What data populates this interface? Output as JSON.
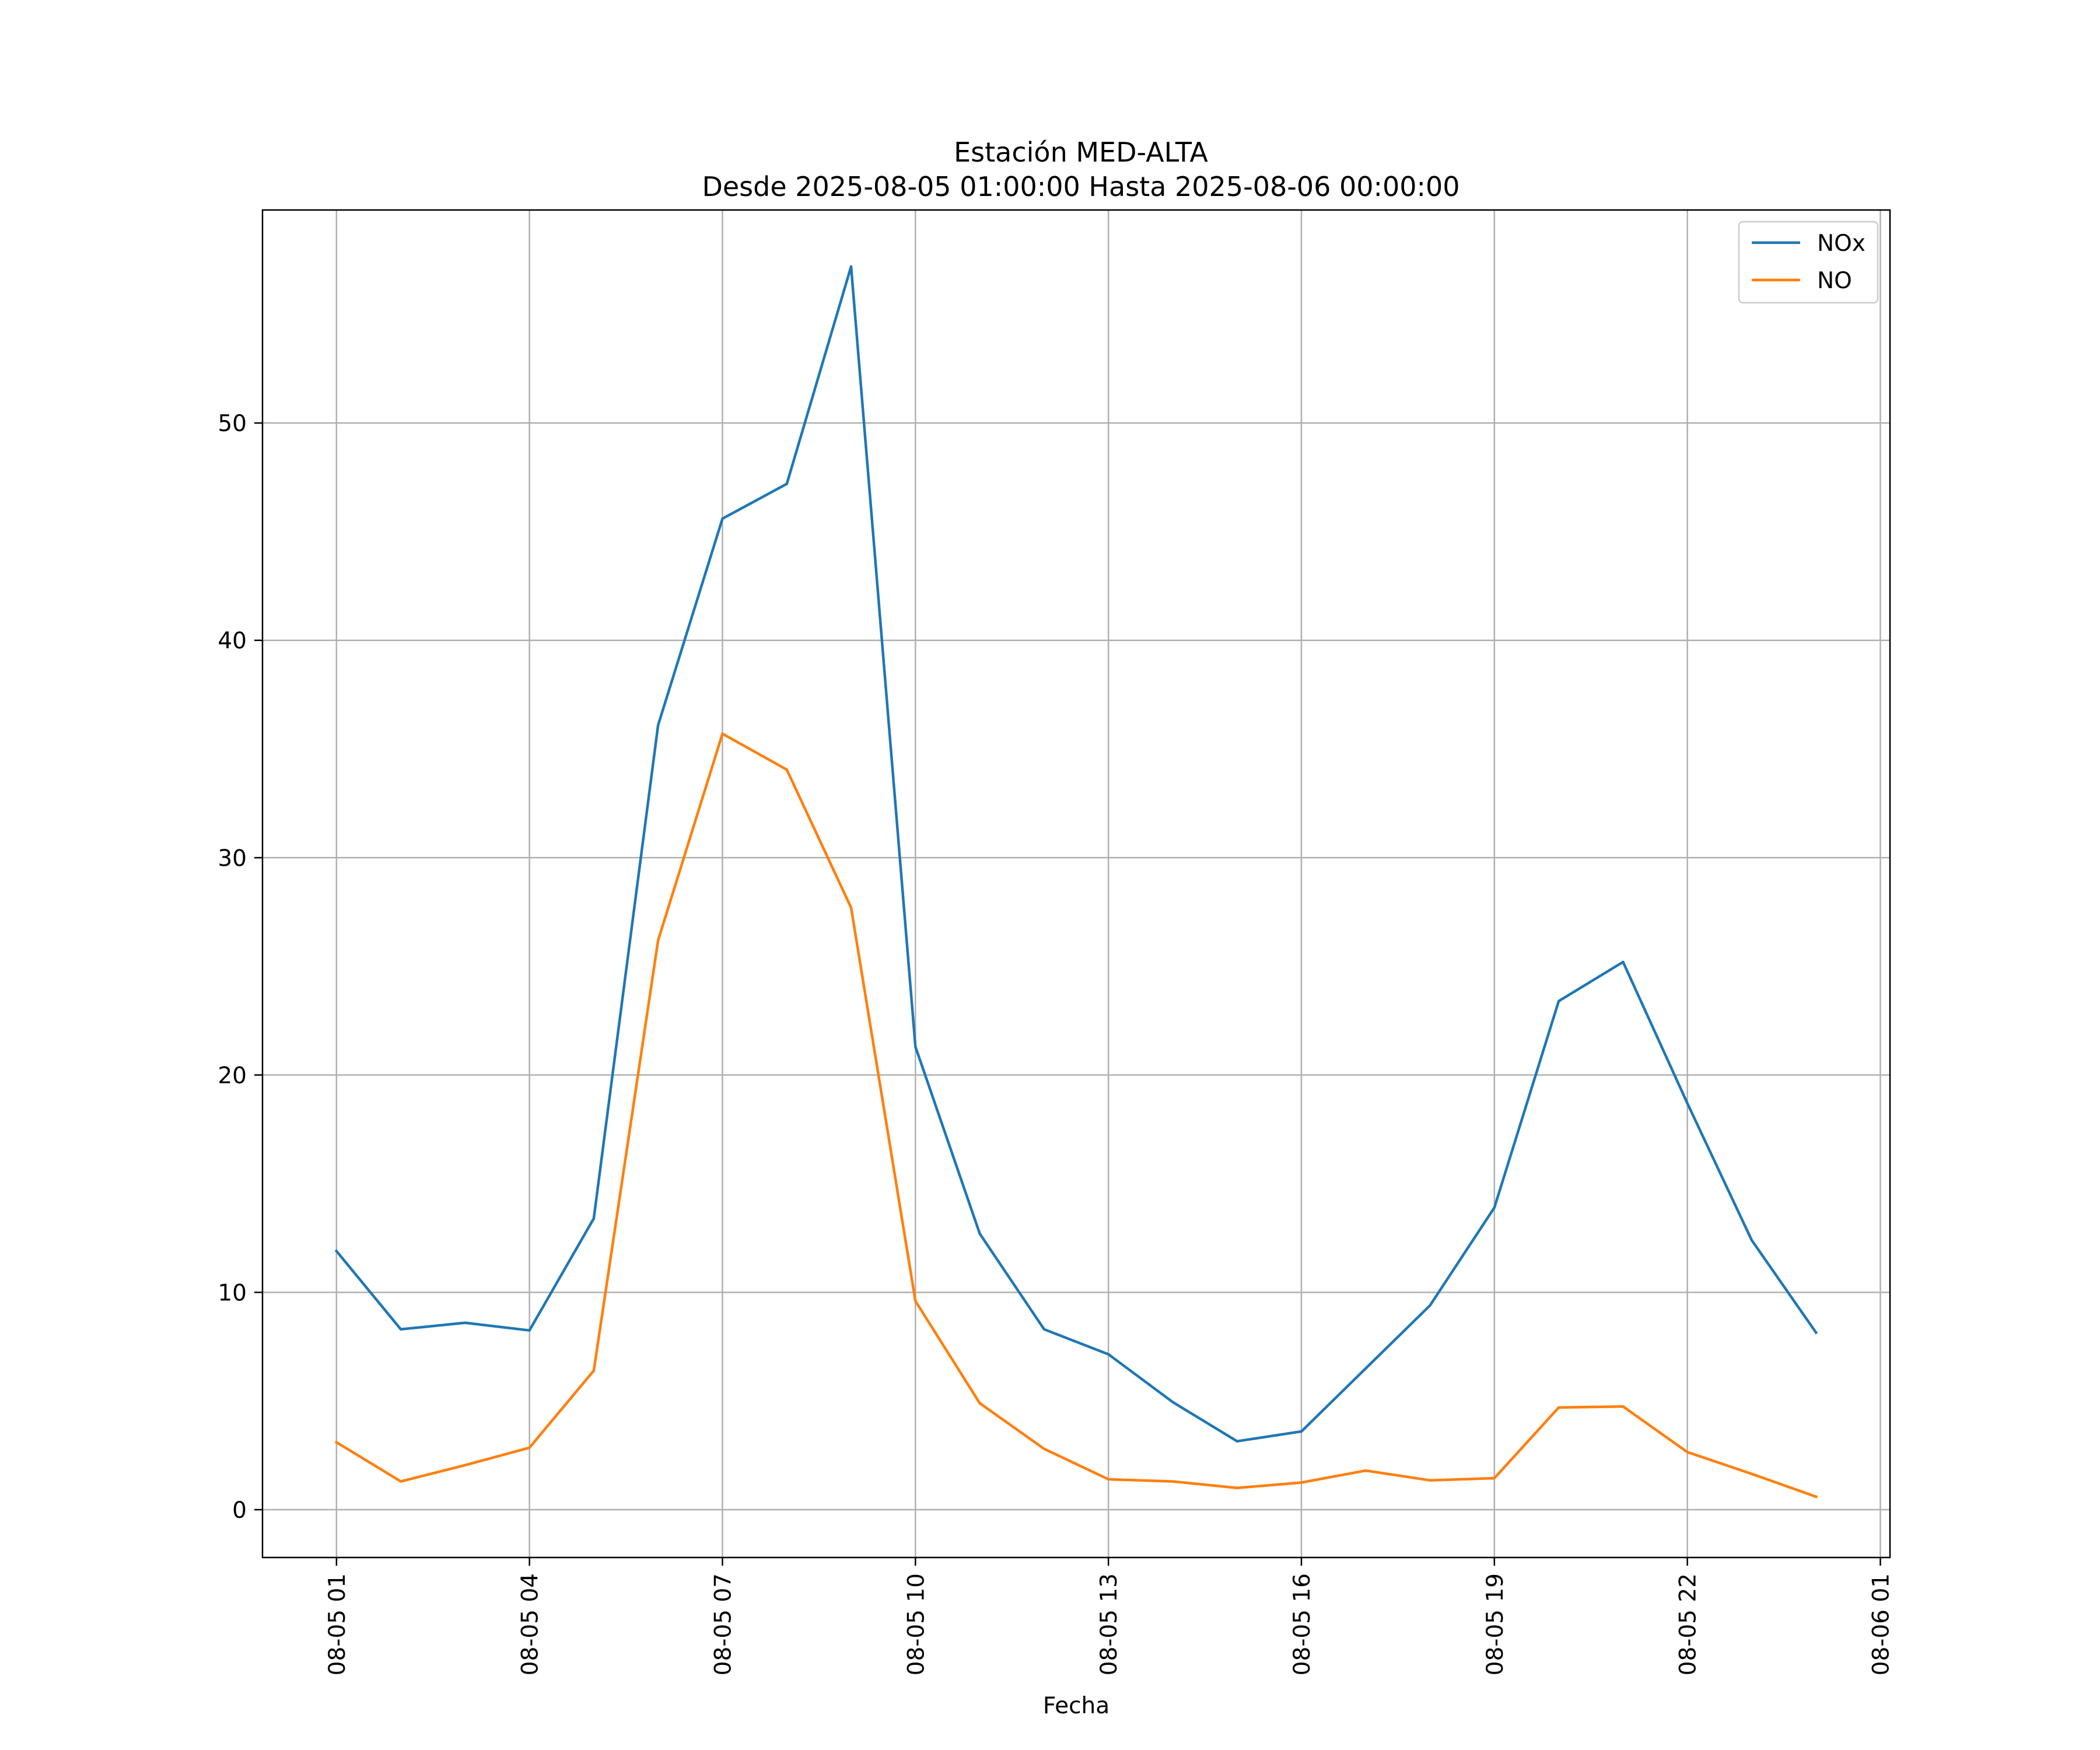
{
  "chart_data": {
    "type": "line",
    "title": "Estación MED-ALTA",
    "subtitle": "Desde 2025-08-05 01:00:00 Hasta 2025-08-06 00:00:00",
    "xlabel": "Fecha",
    "ylabel": "",
    "x": [
      "2025-08-05 01:00",
      "2025-08-05 02:00",
      "2025-08-05 03:00",
      "2025-08-05 04:00",
      "2025-08-05 05:00",
      "2025-08-05 06:00",
      "2025-08-05 07:00",
      "2025-08-05 08:00",
      "2025-08-05 09:00",
      "2025-08-05 10:00",
      "2025-08-05 11:00",
      "2025-08-05 12:00",
      "2025-08-05 13:00",
      "2025-08-05 14:00",
      "2025-08-05 15:00",
      "2025-08-05 16:00",
      "2025-08-05 17:00",
      "2025-08-05 18:00",
      "2025-08-05 19:00",
      "2025-08-05 20:00",
      "2025-08-05 21:00",
      "2025-08-05 22:00",
      "2025-08-05 23:00",
      "2025-08-06 00:00"
    ],
    "xticks": [
      "08-05 01",
      "08-05 04",
      "08-05 07",
      "08-05 10",
      "08-05 13",
      "08-05 16",
      "08-05 19",
      "08-05 22",
      "08-06 01"
    ],
    "xlim": [
      "2025-08-04 23:51",
      "2025-08-06 01:09"
    ],
    "ylim": [
      -2.2,
      59.8
    ],
    "yticks": [
      0,
      10,
      20,
      30,
      40,
      50
    ],
    "grid": true,
    "legend_position": "top-right",
    "series": [
      {
        "name": "NOx",
        "color": "#1f77b4",
        "values": [
          11.9,
          8.3,
          8.6,
          8.25,
          13.4,
          36.1,
          45.6,
          47.2,
          57.2,
          21.3,
          12.7,
          8.3,
          7.15,
          4.95,
          3.15,
          3.6,
          6.5,
          9.4,
          13.9,
          23.4,
          25.2,
          18.7,
          12.4,
          8.15
        ]
      },
      {
        "name": "NO",
        "color": "#ff7f0e",
        "values": [
          3.1,
          1.3,
          2.05,
          2.85,
          6.4,
          26.2,
          35.7,
          34.05,
          27.7,
          9.6,
          4.9,
          2.8,
          1.4,
          1.3,
          1.0,
          1.25,
          1.8,
          1.35,
          1.45,
          4.7,
          4.75,
          2.65,
          1.65,
          0.6
        ]
      }
    ]
  }
}
